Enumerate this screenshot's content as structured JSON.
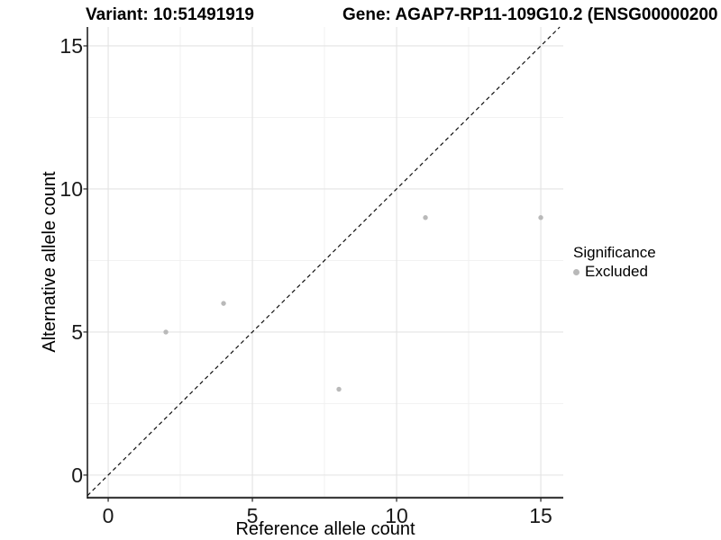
{
  "header": {
    "variant_title": "Variant: 10:51491919",
    "gene_title": "Gene: AGAP7-RP11-109G10.2 (ENSG00000200"
  },
  "legend": {
    "title": "Significance",
    "items": [
      {
        "label": "Excluded",
        "color": "#b9b9b9"
      }
    ]
  },
  "chart_data": {
    "type": "scatter",
    "title": "Variant: 10:51491919   Gene: AGAP7-RP11-109G10.2 (ENSG00000200…)",
    "xlabel": "Reference allele count",
    "ylabel": "Alternative allele count",
    "xlim": [
      -0.72,
      15.78
    ],
    "ylim": [
      -0.79,
      15.66
    ],
    "xticks": [
      0,
      5,
      10,
      15
    ],
    "yticks": [
      0,
      5,
      10,
      15
    ],
    "x_minor_ticks": [
      2.5,
      7.5,
      12.5
    ],
    "y_minor_ticks": [
      2.5,
      7.5,
      12.5
    ],
    "grid": "major+minor",
    "legend_position": "right",
    "series": [
      {
        "name": "Excluded",
        "marker": "circle",
        "color": "#b9b9b9",
        "points": [
          [
            2,
            5
          ],
          [
            4,
            6
          ],
          [
            8,
            3
          ],
          [
            11,
            9
          ],
          [
            15,
            9
          ]
        ]
      }
    ],
    "reference_line": {
      "kind": "identity y=x",
      "style": "dashed",
      "color": "#111111"
    },
    "colors": {
      "point": "#b9b9b9",
      "major_grid": "#e3e3e3",
      "minor_grid": "#f0f0f0",
      "x_axis_line": "#3d3d3d",
      "y_axis_line": "#141414",
      "tick_mark": "#222222"
    }
  }
}
